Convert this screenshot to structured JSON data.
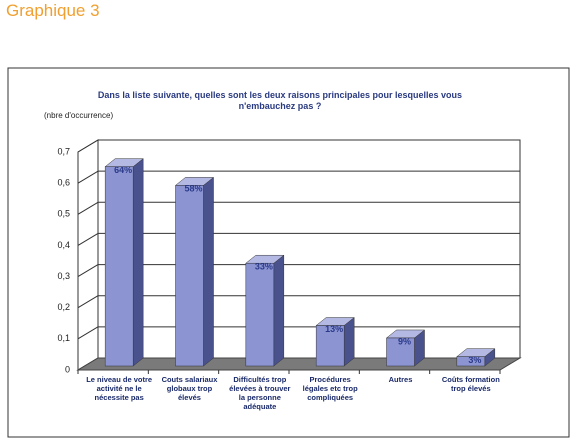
{
  "header": {
    "title": "Graphique 3"
  },
  "chart_data": {
    "type": "bar3d",
    "title": "Dans la liste suivante, quelles sont les deux raisons principales pour lesquelles vous n'embauchez pas ?",
    "y_label": "(nbre d'occurrence)",
    "categories": [
      "Le niveau de votre activité ne le nécessite pas",
      "Couts salariaux globaux trop élevés",
      "Difficultés trop élevées à trouver la personne adéquate",
      "Procédures légales etc trop compliquées",
      "Autres",
      "Coûts formation trop élevés"
    ],
    "values": [
      0.64,
      0.58,
      0.33,
      0.13,
      0.09,
      0.03
    ],
    "value_labels": [
      "64%",
      "58%",
      "33%",
      "13%",
      "9%",
      "3%"
    ],
    "color": "#8c94d2",
    "ylim": [
      0,
      0.7
    ],
    "yticks": [
      0,
      {
        "value": 0.1,
        "label": "0,1"
      },
      {
        "value": 0.2,
        "label": "0,2"
      },
      {
        "value": 0.3,
        "label": "0,3"
      },
      {
        "value": 0.4,
        "label": "0,4"
      },
      {
        "value": 0.5,
        "label": "0,5"
      },
      {
        "value": 0.6,
        "label": "0,6"
      },
      {
        "value": 0.7,
        "label": "0,7"
      }
    ],
    "grid": true
  }
}
